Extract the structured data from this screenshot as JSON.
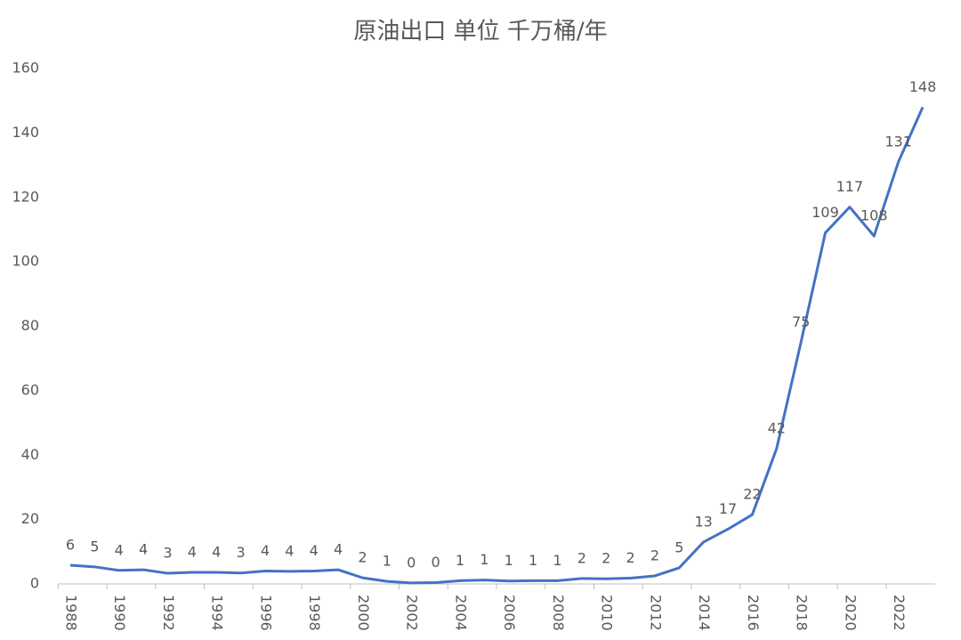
{
  "chart_data": {
    "type": "line",
    "title": "原油出口 单位 千万桶/年",
    "x": [
      1988,
      1989,
      1990,
      1991,
      1992,
      1993,
      1994,
      1995,
      1996,
      1997,
      1998,
      1999,
      2000,
      2001,
      2002,
      2003,
      2004,
      2005,
      2006,
      2007,
      2008,
      2009,
      2010,
      2011,
      2012,
      2013,
      2014,
      2015,
      2016,
      2017,
      2018,
      2019,
      2020,
      2021,
      2022,
      2023
    ],
    "xlim": [
      1988,
      2023
    ],
    "xticks": [
      1988,
      1990,
      1992,
      1994,
      1996,
      1998,
      2000,
      2002,
      2004,
      2006,
      2008,
      2010,
      2012,
      2014,
      2016,
      2018,
      2020,
      2022
    ],
    "ylim": [
      0,
      160
    ],
    "yticks": [
      0,
      20,
      40,
      60,
      80,
      100,
      120,
      140,
      160
    ],
    "grid": false,
    "series": [
      {
        "name": "原油出口",
        "color": "#4472c4",
        "values": [
          5.8,
          5.3,
          4.2,
          4.4,
          3.3,
          3.6,
          3.6,
          3.4,
          4.0,
          3.9,
          4.0,
          4.4,
          1.9,
          0.8,
          0.3,
          0.4,
          1.0,
          1.2,
          0.9,
          1.0,
          1.0,
          1.7,
          1.6,
          1.8,
          2.5,
          5.0,
          13,
          17,
          21.5,
          42,
          75,
          109,
          117,
          108,
          131,
          148
        ],
        "value_labels": [
          "6",
          "5",
          "4",
          "4",
          "3",
          "4",
          "4",
          "3",
          "4",
          "4",
          "4",
          "4",
          "2",
          "1",
          "0",
          "0",
          "1",
          "1",
          "1",
          "1",
          "1",
          "2",
          "2",
          "2",
          "2",
          "5",
          "13",
          "17",
          "22",
          "42",
          "75",
          "109",
          "117",
          "108",
          "131",
          "148"
        ]
      }
    ]
  }
}
